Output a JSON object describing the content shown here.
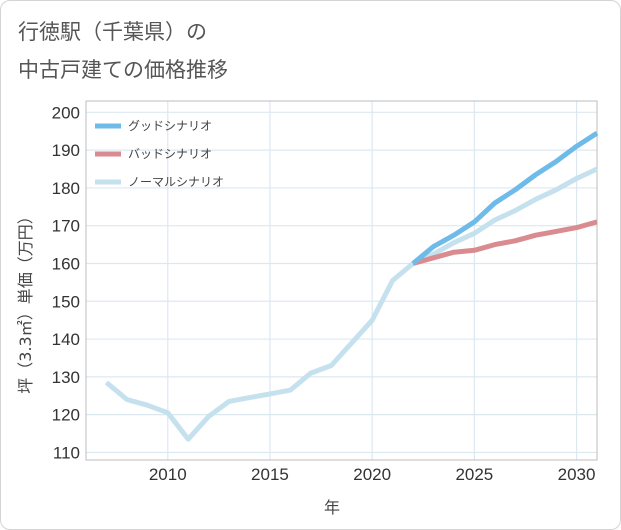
{
  "title_line1": "行徳駅（千葉県）の",
  "title_line2": "中古戸建ての価格推移",
  "colors": {
    "good": "#6ebbea",
    "bad": "#d98b90",
    "normal": "#c5e1ee",
    "grid": "#dce8f0",
    "plot_border": "#bdbdbd"
  },
  "chart_data": {
    "type": "line",
    "title": "行徳駅（千葉県）の 中古戸建ての価格推移",
    "xlabel": "年",
    "ylabel": "坪（3.3㎡）単価（万円）",
    "xlim": [
      2006,
      2031
    ],
    "ylim": [
      108,
      203
    ],
    "x_ticks": [
      2010,
      2015,
      2020,
      2025,
      2030
    ],
    "y_ticks": [
      110,
      120,
      130,
      140,
      150,
      160,
      170,
      180,
      190,
      200
    ],
    "legend": {
      "position": "top-left",
      "entries": [
        "グッドシナリオ",
        "バッドシナリオ",
        "ノーマルシナリオ"
      ]
    },
    "series": [
      {
        "name": "ノーマルシナリオ",
        "color": "normal",
        "x": [
          2007,
          2008,
          2009,
          2010,
          2011,
          2012,
          2013,
          2014,
          2015,
          2016,
          2017,
          2018,
          2019,
          2020,
          2021,
          2022,
          2023,
          2024,
          2025,
          2026,
          2027,
          2028,
          2029,
          2030,
          2031
        ],
        "values": [
          128.5,
          124,
          122.5,
          120.5,
          113.5,
          119.5,
          123.5,
          124.5,
          125.5,
          126.5,
          131,
          133,
          139,
          145,
          155.5,
          160,
          162.5,
          165.5,
          168,
          171.5,
          174,
          177,
          179.5,
          182.5,
          185
        ]
      },
      {
        "name": "バッドシナリオ",
        "color": "bad",
        "x": [
          2022,
          2023,
          2024,
          2025,
          2026,
          2027,
          2028,
          2029,
          2030,
          2031
        ],
        "values": [
          160,
          161.5,
          163,
          163.5,
          165,
          166,
          167.5,
          168.5,
          169.5,
          171
        ]
      },
      {
        "name": "グッドシナリオ",
        "color": "good",
        "x": [
          2022,
          2023,
          2024,
          2025,
          2026,
          2027,
          2028,
          2029,
          2030,
          2031
        ],
        "values": [
          160,
          164.5,
          167.5,
          171,
          176,
          179.5,
          183.5,
          187,
          191,
          194.5
        ]
      }
    ]
  }
}
